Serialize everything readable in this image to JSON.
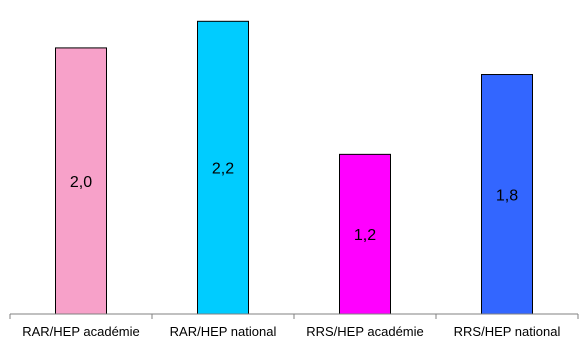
{
  "chart_data": {
    "type": "bar",
    "title": "",
    "xlabel": "",
    "ylabel": "",
    "categories": [
      "RAR/HEP académie",
      "RAR/HEP national",
      "RRS/HEP académie",
      "RRS/HEP national"
    ],
    "values": [
      2.0,
      2.2,
      1.2,
      1.8
    ],
    "value_labels": [
      "2,0",
      "2,2",
      "1,2",
      "1,8"
    ],
    "colors": [
      "#f7a1c9",
      "#00ccff",
      "#ff00ff",
      "#3366ff"
    ],
    "ylim": [
      0,
      2.3
    ],
    "grid": false,
    "legend": "none"
  }
}
